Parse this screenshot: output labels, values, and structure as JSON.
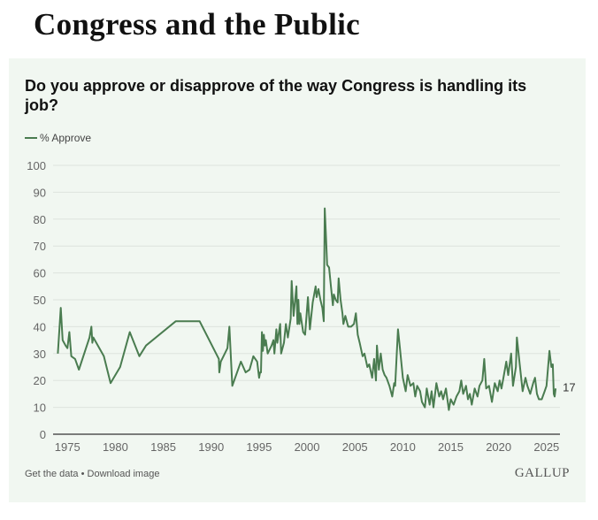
{
  "page_title": "Congress and the Public",
  "footer": {
    "get_data": "Get the data",
    "separator": " • ",
    "download": "Download image",
    "logo": "GALLUP"
  },
  "chart_data": {
    "type": "line",
    "title": "Do you approve or disapprove of the way Congress is handling its job?",
    "ylim": [
      0,
      100
    ],
    "yticks": [
      "0",
      "10",
      "20",
      "30",
      "40",
      "50",
      "60",
      "70",
      "80",
      "90",
      "100"
    ],
    "xlim": [
      1973.5,
      2026.4
    ],
    "xticks": [
      "1975",
      "1980",
      "1985",
      "1990",
      "1995",
      "2000",
      "2005",
      "2010",
      "2015",
      "2020",
      "2025"
    ],
    "grid": true,
    "legend_placement": "top-left",
    "color": "#4a7c50",
    "end_label": "17",
    "series": [
      {
        "name": "% Approve",
        "points": [
          [
            1974.0,
            30
          ],
          [
            1974.3,
            47
          ],
          [
            1974.5,
            35
          ],
          [
            1974.8,
            33
          ],
          [
            1975.0,
            32
          ],
          [
            1975.2,
            38
          ],
          [
            1975.4,
            29
          ],
          [
            1975.8,
            28
          ],
          [
            1976.2,
            24
          ],
          [
            1977.3,
            36
          ],
          [
            1977.5,
            40
          ],
          [
            1977.6,
            34
          ],
          [
            1977.7,
            36
          ],
          [
            1978.8,
            29
          ],
          [
            1979.5,
            19
          ],
          [
            1980.5,
            25
          ],
          [
            1981.5,
            38
          ],
          [
            1982.5,
            29
          ],
          [
            1983.2,
            33
          ],
          [
            1986.3,
            42
          ],
          [
            1988.8,
            42
          ],
          [
            1990.8,
            28
          ],
          [
            1990.85,
            23
          ],
          [
            1991.0,
            27
          ],
          [
            1991.7,
            32
          ],
          [
            1991.9,
            40
          ],
          [
            1992.2,
            18
          ],
          [
            1993.1,
            27
          ],
          [
            1993.6,
            23
          ],
          [
            1994.0,
            24
          ],
          [
            1994.4,
            29
          ],
          [
            1994.8,
            27
          ],
          [
            1995.0,
            21
          ],
          [
            1995.1,
            23
          ],
          [
            1995.2,
            23
          ],
          [
            1995.3,
            38
          ],
          [
            1995.4,
            31
          ],
          [
            1995.5,
            37
          ],
          [
            1995.6,
            33
          ],
          [
            1995.7,
            35
          ],
          [
            1995.9,
            30
          ],
          [
            1996.3,
            33
          ],
          [
            1996.5,
            35
          ],
          [
            1996.6,
            30
          ],
          [
            1996.8,
            39
          ],
          [
            1996.9,
            34
          ],
          [
            1997.2,
            41
          ],
          [
            1997.3,
            30
          ],
          [
            1997.6,
            34
          ],
          [
            1997.8,
            41
          ],
          [
            1998.0,
            36
          ],
          [
            1998.3,
            43
          ],
          [
            1998.4,
            57
          ],
          [
            1998.6,
            44
          ],
          [
            1998.9,
            55
          ],
          [
            1999.0,
            41
          ],
          [
            1999.1,
            50
          ],
          [
            1999.2,
            41
          ],
          [
            1999.3,
            45
          ],
          [
            1999.6,
            38
          ],
          [
            1999.8,
            37
          ],
          [
            2000.1,
            51
          ],
          [
            2000.3,
            39
          ],
          [
            2000.6,
            49
          ],
          [
            2000.9,
            55
          ],
          [
            2001.0,
            51
          ],
          [
            2001.2,
            54
          ],
          [
            2001.4,
            50
          ],
          [
            2001.6,
            47
          ],
          [
            2001.75,
            42
          ],
          [
            2001.85,
            84
          ],
          [
            2002.0,
            72
          ],
          [
            2002.1,
            63
          ],
          [
            2002.3,
            62
          ],
          [
            2002.5,
            55
          ],
          [
            2002.7,
            48
          ],
          [
            2002.8,
            52
          ],
          [
            2003.0,
            50
          ],
          [
            2003.2,
            49
          ],
          [
            2003.3,
            58
          ],
          [
            2003.5,
            50
          ],
          [
            2003.7,
            45
          ],
          [
            2003.8,
            41
          ],
          [
            2004.0,
            44
          ],
          [
            2004.3,
            40
          ],
          [
            2004.6,
            40
          ],
          [
            2004.9,
            41
          ],
          [
            2005.1,
            45
          ],
          [
            2005.3,
            37
          ],
          [
            2005.5,
            34
          ],
          [
            2005.8,
            29
          ],
          [
            2006.0,
            30
          ],
          [
            2006.3,
            25
          ],
          [
            2006.5,
            26
          ],
          [
            2006.8,
            21
          ],
          [
            2007.0,
            28
          ],
          [
            2007.2,
            20
          ],
          [
            2007.3,
            33
          ],
          [
            2007.5,
            24
          ],
          [
            2007.7,
            30
          ],
          [
            2007.9,
            24
          ],
          [
            2008.1,
            22
          ],
          [
            2008.3,
            21
          ],
          [
            2008.6,
            18
          ],
          [
            2008.9,
            14
          ],
          [
            2009.1,
            19
          ],
          [
            2009.2,
            18
          ],
          [
            2009.5,
            39
          ],
          [
            2009.7,
            32
          ],
          [
            2010.0,
            21
          ],
          [
            2010.3,
            16
          ],
          [
            2010.5,
            22
          ],
          [
            2010.8,
            18
          ],
          [
            2011.1,
            19
          ],
          [
            2011.3,
            14
          ],
          [
            2011.5,
            18
          ],
          [
            2011.8,
            16
          ],
          [
            2012.0,
            12
          ],
          [
            2012.3,
            10
          ],
          [
            2012.5,
            17
          ],
          [
            2012.8,
            11
          ],
          [
            2013.0,
            16
          ],
          [
            2013.2,
            10
          ],
          [
            2013.5,
            19
          ],
          [
            2013.8,
            14
          ],
          [
            2014.0,
            16
          ],
          [
            2014.2,
            13
          ],
          [
            2014.5,
            17
          ],
          [
            2014.8,
            9
          ],
          [
            2015.0,
            13
          ],
          [
            2015.3,
            11
          ],
          [
            2015.6,
            14
          ],
          [
            2015.9,
            16
          ],
          [
            2016.1,
            20
          ],
          [
            2016.3,
            15
          ],
          [
            2016.6,
            18
          ],
          [
            2016.8,
            13
          ],
          [
            2017.0,
            15
          ],
          [
            2017.2,
            11
          ],
          [
            2017.5,
            17
          ],
          [
            2017.8,
            14
          ],
          [
            2018.0,
            18
          ],
          [
            2018.3,
            20
          ],
          [
            2018.5,
            28
          ],
          [
            2018.7,
            17
          ],
          [
            2019.0,
            18
          ],
          [
            2019.3,
            12
          ],
          [
            2019.6,
            19
          ],
          [
            2019.9,
            16
          ],
          [
            2020.1,
            20
          ],
          [
            2020.3,
            17
          ],
          [
            2020.5,
            21
          ],
          [
            2020.8,
            27
          ],
          [
            2021.0,
            22
          ],
          [
            2021.3,
            30
          ],
          [
            2021.5,
            18
          ],
          [
            2021.8,
            25
          ],
          [
            2021.9,
            36
          ],
          [
            2022.2,
            26
          ],
          [
            2022.5,
            16
          ],
          [
            2022.8,
            21
          ],
          [
            2023.0,
            18
          ],
          [
            2023.3,
            15
          ],
          [
            2023.6,
            19
          ],
          [
            2023.8,
            21
          ],
          [
            2024.0,
            15
          ],
          [
            2024.2,
            13
          ],
          [
            2024.5,
            13
          ],
          [
            2024.8,
            16
          ],
          [
            2025.0,
            18
          ],
          [
            2025.3,
            31
          ],
          [
            2025.5,
            25
          ],
          [
            2025.65,
            26
          ],
          [
            2025.75,
            15
          ],
          [
            2025.85,
            14
          ],
          [
            2025.95,
            17
          ]
        ]
      }
    ]
  }
}
